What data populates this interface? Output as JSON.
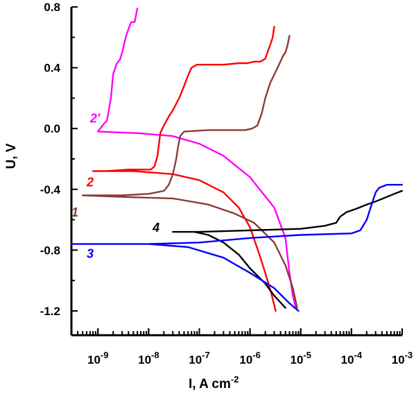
{
  "chart_data": {
    "type": "line",
    "title": "",
    "xlabel": "I, A cm",
    "xlabel_sup": "-2",
    "ylabel": "U, V",
    "x_scale": "log",
    "xlim": [
      3e-10,
      0.001
    ],
    "ylim": [
      -1.36,
      0.8
    ],
    "grid": false,
    "y_ticks": [
      {
        "value": 0.8,
        "label": "0.8"
      },
      {
        "value": 0.4,
        "label": "0.4"
      },
      {
        "value": 0.0,
        "label": "0.0"
      },
      {
        "value": -0.4,
        "label": "-0.4"
      },
      {
        "value": -0.8,
        "label": "-0.8"
      },
      {
        "value": -1.2,
        "label": "-1.2"
      }
    ],
    "x_ticks": [
      {
        "value": 1e-09,
        "base": "10",
        "exp": "-9"
      },
      {
        "value": 1e-08,
        "base": "10",
        "exp": "-8"
      },
      {
        "value": 1e-07,
        "base": "10",
        "exp": "-7"
      },
      {
        "value": 1e-06,
        "base": "10",
        "exp": "-6"
      },
      {
        "value": 1e-05,
        "base": "10",
        "exp": "-5"
      },
      {
        "value": 0.0001,
        "base": "10",
        "exp": "-4"
      },
      {
        "value": 0.001,
        "base": "10",
        "exp": "-3"
      }
    ],
    "series": [
      {
        "name": "2'",
        "color": "#ff00ff",
        "label_at": [
          7e-10,
          0.04
        ],
        "points": [
          [
            6e-09,
            0.79
          ],
          [
            5.3e-09,
            0.7
          ],
          [
            4.5e-09,
            0.7
          ],
          [
            3.6e-09,
            0.61
          ],
          [
            3e-09,
            0.5
          ],
          [
            2.7e-09,
            0.45
          ],
          [
            2.5e-09,
            0.44
          ],
          [
            2.3e-09,
            0.42
          ],
          [
            2e-09,
            0.36
          ],
          [
            1.8e-09,
            0.2
          ],
          [
            1.6e-09,
            0.1
          ],
          [
            1.5e-09,
            0.05
          ],
          [
            1.3e-09,
            0.03
          ],
          [
            1e-09,
            -0.02
          ],
          [
            6e-09,
            -0.03
          ],
          [
            3e-08,
            -0.05
          ],
          [
            1e-07,
            -0.1
          ],
          [
            3e-07,
            -0.18
          ],
          [
            1e-06,
            -0.32
          ],
          [
            3e-06,
            -0.52
          ],
          [
            5e-06,
            -0.72
          ],
          [
            6e-06,
            -0.95
          ],
          [
            7e-06,
            -1.1
          ],
          [
            8e-06,
            -1.18
          ]
        ]
      },
      {
        "name": "2",
        "color": "#ff0000",
        "label_at": [
          6e-10,
          -0.38
        ],
        "points": [
          [
            3e-06,
            0.67
          ],
          [
            2.8e-06,
            0.6
          ],
          [
            2.5e-06,
            0.55
          ],
          [
            2.2e-06,
            0.5
          ],
          [
            2e-06,
            0.46
          ],
          [
            1.6e-06,
            0.44
          ],
          [
            1.2e-06,
            0.44
          ],
          [
            9e-07,
            0.43
          ],
          [
            6e-07,
            0.43
          ],
          [
            3e-07,
            0.42
          ],
          [
            1.3e-07,
            0.42
          ],
          [
            9e-08,
            0.42
          ],
          [
            7e-08,
            0.4
          ],
          [
            6e-08,
            0.35
          ],
          [
            5e-08,
            0.28
          ],
          [
            4e-08,
            0.2
          ],
          [
            3e-08,
            0.12
          ],
          [
            2.5e-08,
            0.08
          ],
          [
            2e-08,
            0.02
          ],
          [
            1.7e-08,
            -0.03
          ],
          [
            1.6e-08,
            -0.1
          ],
          [
            1.5e-08,
            -0.18
          ],
          [
            1.3e-08,
            -0.25
          ],
          [
            1.1e-08,
            -0.27
          ],
          [
            7e-09,
            -0.27
          ],
          [
            4e-09,
            -0.27
          ],
          [
            1.5e-09,
            -0.28
          ],
          [
            8e-10,
            -0.28
          ],
          [
            5e-09,
            -0.28
          ],
          [
            3e-08,
            -0.3
          ],
          [
            1e-07,
            -0.34
          ],
          [
            3e-07,
            -0.42
          ],
          [
            6e-07,
            -0.52
          ],
          [
            1e-06,
            -0.65
          ],
          [
            1.5e-06,
            -0.82
          ],
          [
            2e-06,
            -0.95
          ],
          [
            2.6e-06,
            -1.08
          ],
          [
            3.2e-06,
            -1.2
          ]
        ]
      },
      {
        "name": "1",
        "color": "#8b3a3a",
        "label_at": [
          3e-10,
          -0.58
        ],
        "points": [
          [
            6e-06,
            0.61
          ],
          [
            5.5e-06,
            0.55
          ],
          [
            5e-06,
            0.5
          ],
          [
            4.5e-06,
            0.48
          ],
          [
            3.5e-06,
            0.4
          ],
          [
            2.5e-06,
            0.3
          ],
          [
            2e-06,
            0.2
          ],
          [
            1.7e-06,
            0.1
          ],
          [
            1.4e-06,
            0.02
          ],
          [
            1.1e-06,
            0.0
          ],
          [
            8e-07,
            -0.01
          ],
          [
            4e-07,
            -0.01
          ],
          [
            1.5e-07,
            -0.01
          ],
          [
            5e-08,
            -0.02
          ],
          [
            4.2e-08,
            -0.05
          ],
          [
            3.8e-08,
            -0.12
          ],
          [
            3.5e-08,
            -0.2
          ],
          [
            3e-08,
            -0.3
          ],
          [
            2.5e-08,
            -0.37
          ],
          [
            2e-08,
            -0.41
          ],
          [
            1e-08,
            -0.43
          ],
          [
            3e-09,
            -0.44
          ],
          [
            1e-09,
            -0.44
          ],
          [
            5e-10,
            -0.44
          ],
          [
            3e-09,
            -0.45
          ],
          [
            3e-08,
            -0.46
          ],
          [
            1.5e-07,
            -0.5
          ],
          [
            5e-07,
            -0.56
          ],
          [
            1.2e-06,
            -0.62
          ],
          [
            3e-06,
            -0.75
          ],
          [
            5e-06,
            -0.9
          ],
          [
            7e-06,
            -1.05
          ],
          [
            8.5e-06,
            -1.18
          ]
        ]
      },
      {
        "name": "4",
        "color": "#000000",
        "label_at": [
          1.2e-08,
          -0.68
        ],
        "points": [
          [
            0.001,
            -0.41
          ],
          [
            0.0007,
            -0.43
          ],
          [
            0.0005,
            -0.45
          ],
          [
            0.0003,
            -0.48
          ],
          [
            0.0002,
            -0.5
          ],
          [
            0.00012,
            -0.53
          ],
          [
            8e-05,
            -0.55
          ],
          [
            6e-05,
            -0.58
          ],
          [
            5e-05,
            -0.62
          ],
          [
            3e-05,
            -0.64
          ],
          [
            1e-05,
            -0.66
          ],
          [
            1e-06,
            -0.67
          ],
          [
            1e-07,
            -0.68
          ],
          [
            3e-08,
            -0.68
          ],
          [
            8e-08,
            -0.68
          ],
          [
            1.5e-07,
            -0.7
          ],
          [
            3e-07,
            -0.75
          ],
          [
            6e-07,
            -0.83
          ],
          [
            1e-06,
            -0.92
          ],
          [
            2e-06,
            -1.02
          ],
          [
            3e-06,
            -1.1
          ],
          [
            5e-06,
            -1.18
          ]
        ]
      },
      {
        "name": "3",
        "color": "#0000ff",
        "label_at": [
          6e-10,
          -0.85
        ],
        "points": [
          [
            0.001,
            -0.37
          ],
          [
            0.0005,
            -0.37
          ],
          [
            0.00035,
            -0.39
          ],
          [
            0.0003,
            -0.42
          ],
          [
            0.00025,
            -0.5
          ],
          [
            0.0002,
            -0.6
          ],
          [
            0.00015,
            -0.67
          ],
          [
            0.0001,
            -0.69
          ],
          [
            1e-05,
            -0.7
          ],
          [
            1e-06,
            -0.72
          ],
          [
            1e-07,
            -0.75
          ],
          [
            1e-08,
            -0.76
          ],
          [
            3e-10,
            -0.76
          ],
          [
            1e-08,
            -0.76
          ],
          [
            6e-08,
            -0.78
          ],
          [
            3e-07,
            -0.85
          ],
          [
            1e-06,
            -0.95
          ],
          [
            3e-06,
            -1.05
          ],
          [
            6e-06,
            -1.15
          ],
          [
            9e-06,
            -1.2
          ]
        ]
      }
    ]
  }
}
